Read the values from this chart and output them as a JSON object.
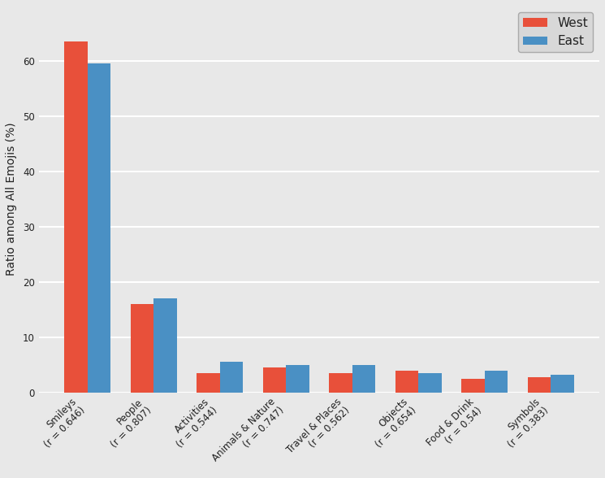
{
  "categories": [
    "Smileys\n(r = 0.646)",
    "People\n(r = 0.807)",
    "Activities\n(r = 0.544)",
    "Animals & Nature\n(r = 0.747)",
    "Travel & Places\n(r = 0.562)",
    "Objects\n(r = 0.654)",
    "Food & Drink\n(r = 0.54)",
    "Symbols\n(r = 0.383)"
  ],
  "west_values": [
    63.5,
    16.0,
    3.5,
    4.5,
    3.5,
    4.0,
    2.5,
    2.8
  ],
  "east_values": [
    59.5,
    17.0,
    5.5,
    5.0,
    5.0,
    3.5,
    4.0,
    3.2
  ],
  "west_color": "#E8503A",
  "east_color": "#4A90C4",
  "ylabel": "Ratio among All Emojis (%)",
  "background_color": "#E8E8E8",
  "figure_color": "#E8E8E8",
  "grid_color": "#FFFFFF",
  "bar_width": 0.35,
  "ylim": [
    0,
    70
  ],
  "yticks": [
    0,
    10,
    20,
    30,
    40,
    50,
    60
  ],
  "legend_west": "West",
  "legend_east": "East",
  "tick_fontsize": 8.5,
  "label_fontsize": 10,
  "text_color": "#222222",
  "legend_facecolor": "#D8D8D8",
  "legend_edgecolor": "#AAAAAA"
}
